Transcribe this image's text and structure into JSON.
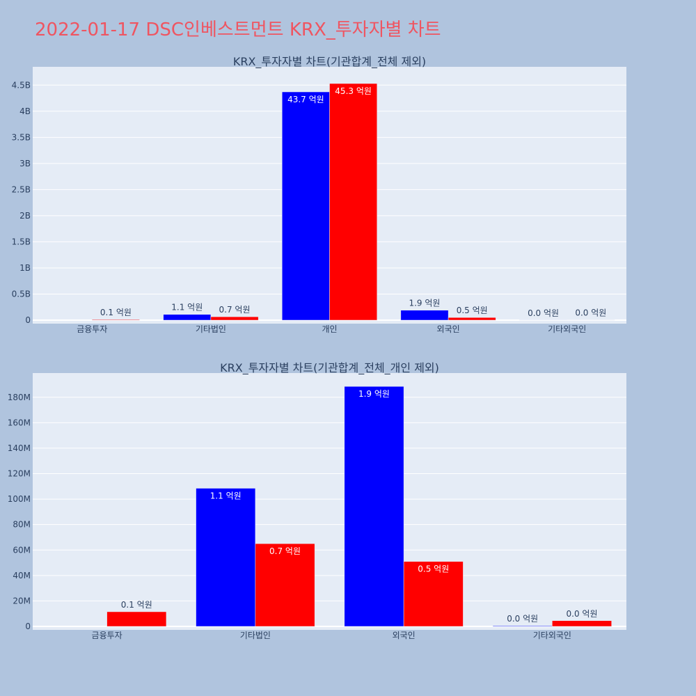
{
  "page_title": "2022-01-17 DSC인베스트먼트 KRX_투자자별 차트",
  "colors": {
    "background": "#b0c4de",
    "plot_bg": "#e5ecf6",
    "series_a": "#0000ff",
    "series_b": "#ff0000",
    "title": "#ef5561"
  },
  "chart_data": [
    {
      "type": "bar",
      "title": "KRX_투자자별 차트(기관합계_전체 제외)",
      "categories": [
        "금융투자",
        "기타법인",
        "개인",
        "외국인",
        "기타외국인"
      ],
      "ylim": [
        0,
        4850000000
      ],
      "yticks": [
        0,
        500000000,
        1000000000,
        1500000000,
        2000000000,
        2500000000,
        3000000000,
        3500000000,
        4000000000,
        4500000000
      ],
      "ytick_labels": [
        "0",
        "0.5B",
        "1B",
        "1.5B",
        "2B",
        "2.5B",
        "3B",
        "3.5B",
        "4B",
        "4.5B"
      ],
      "grid": true,
      "series": [
        {
          "color": "#0000ff",
          "values": [
            0,
            110000000,
            4370000000,
            190000000,
            2000000
          ],
          "labels": [
            "",
            "1.1 억원",
            "43.7 억원",
            "1.9 억원",
            "0.0 억원"
          ]
        },
        {
          "color": "#ff0000",
          "values": [
            12000000,
            65000000,
            4530000000,
            51000000,
            4000000
          ],
          "labels": [
            "0.1 억원",
            "0.7 억원",
            "45.3 억원",
            "0.5 억원",
            "0.0 억원"
          ]
        }
      ]
    },
    {
      "type": "bar",
      "title": "KRX_투자자별 차트(기관합계_전체_개인 제외)",
      "categories": [
        "금융투자",
        "기타법인",
        "외국인",
        "기타외국인"
      ],
      "ylim": [
        0,
        199000000
      ],
      "yticks": [
        0,
        20000000,
        40000000,
        60000000,
        80000000,
        100000000,
        120000000,
        140000000,
        160000000,
        180000000
      ],
      "ytick_labels": [
        "0",
        "20M",
        "40M",
        "60M",
        "80M",
        "100M",
        "120M",
        "140M",
        "160M",
        "180M"
      ],
      "grid": true,
      "series": [
        {
          "color": "#0000ff",
          "values": [
            0,
            108500000,
            188500000,
            500000
          ],
          "labels": [
            "",
            "1.1 억원",
            "1.9 억원",
            "0.0 억원"
          ]
        },
        {
          "color": "#ff0000",
          "values": [
            11500000,
            65000000,
            51000000,
            4500000
          ],
          "labels": [
            "0.1 억원",
            "0.7 억원",
            "0.5 억원",
            "0.0 억원"
          ]
        }
      ]
    }
  ]
}
